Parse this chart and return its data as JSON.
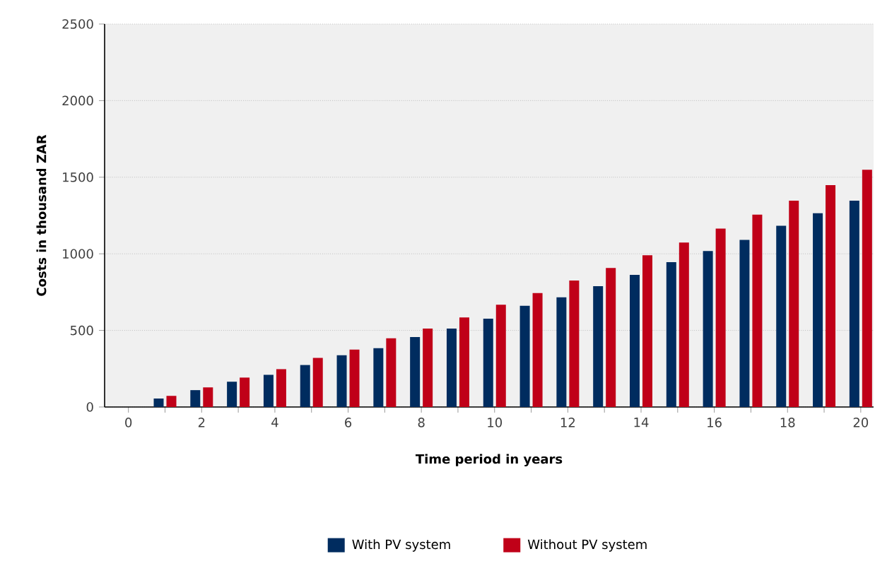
{
  "chart_data": {
    "type": "bar",
    "xlabel": "Time period in years",
    "ylabel": "Costs in thousand ZAR",
    "x": [
      1,
      2,
      3,
      4,
      5,
      6,
      7,
      8,
      9,
      10,
      11,
      12,
      13,
      14,
      15,
      16,
      17,
      18,
      19,
      20
    ],
    "series": [
      {
        "name": "With PV system",
        "color": "#002c5f",
        "values": [
          55,
          110,
          165,
          210,
          274,
          338,
          384,
          457,
          512,
          576,
          661,
          716,
          789,
          863,
          945,
          1018,
          1091,
          1183,
          1265,
          1347
        ]
      },
      {
        "name": "Without PV system",
        "color": "#c00018",
        "values": [
          73,
          128,
          192,
          247,
          320,
          375,
          448,
          512,
          585,
          668,
          744,
          826,
          908,
          991,
          1073,
          1165,
          1256,
          1347,
          1448,
          1549
        ]
      }
    ],
    "xlim": [
      -0.65,
      20.35
    ],
    "xticks": [
      0,
      {
        "value": 1,
        "label": null
      },
      2,
      {
        "value": 3,
        "label": null
      },
      4,
      {
        "value": 5,
        "label": null
      },
      6,
      {
        "value": 7,
        "label": null
      },
      8,
      {
        "value": 9,
        "label": null
      },
      10,
      {
        "value": 11,
        "label": null
      },
      12,
      {
        "value": 13,
        "label": null
      },
      14,
      {
        "value": 15,
        "label": null
      },
      16,
      {
        "value": 17,
        "label": null
      },
      18,
      {
        "value": 19,
        "label": null
      },
      20
    ],
    "ylim": [
      0,
      2500
    ],
    "yticks": [
      0,
      500,
      1000,
      1500,
      2000,
      2500
    ],
    "grid": "y",
    "legend": "bottom"
  }
}
